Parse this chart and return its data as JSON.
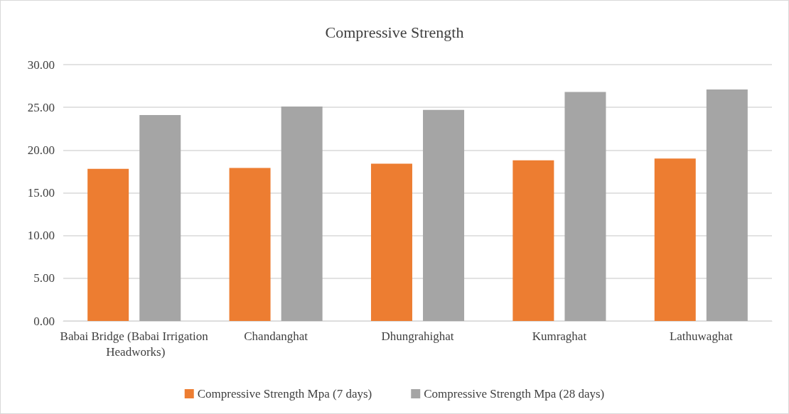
{
  "chart_data": {
    "type": "bar",
    "title": "Compressive Strength",
    "categories": [
      "Babai Bridge (Babai Irrigation Headworks)",
      "Chandanghat",
      "Dhungrahighat",
      "Kumraghat",
      "Lathuwaghat"
    ],
    "series": [
      {
        "name": "Compressive Strength Mpa (7 days)",
        "color": "#ed7d31",
        "values": [
          17.8,
          17.9,
          18.4,
          18.8,
          19.0
        ]
      },
      {
        "name": "Compressive Strength Mpa (28 days)",
        "color": "#a5a5a5",
        "values": [
          24.1,
          25.1,
          24.7,
          26.8,
          27.1
        ]
      }
    ],
    "ylim": [
      0,
      30
    ],
    "yticks": [
      {
        "value": 0,
        "label": "0.00"
      },
      {
        "value": 5,
        "label": "5.00"
      },
      {
        "value": 10,
        "label": "10.00"
      },
      {
        "value": 15,
        "label": "15.00"
      },
      {
        "value": 20,
        "label": "20.00"
      },
      {
        "value": 25,
        "label": "25.00"
      },
      {
        "value": 30,
        "label": "30.00"
      }
    ],
    "grid": "y",
    "legend": "bottom"
  }
}
